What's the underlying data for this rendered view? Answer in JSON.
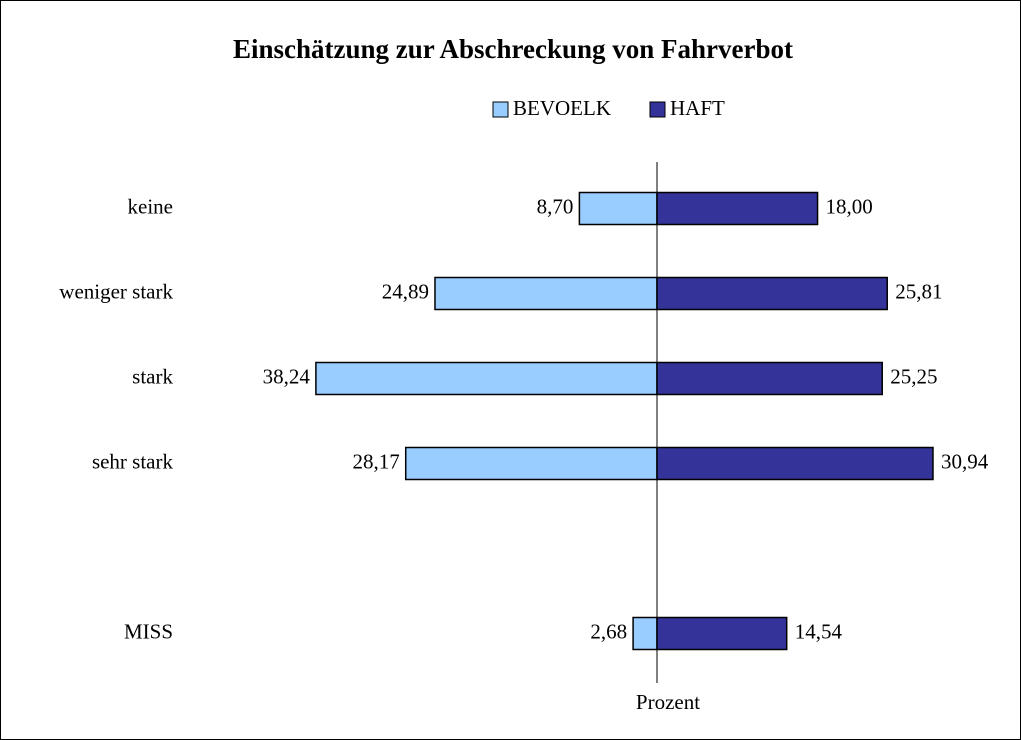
{
  "chart_data": {
    "type": "butterfly-bar",
    "title": "Einschätzung zur Abschreckung von Fahrverbot",
    "xlabel": "Prozent",
    "categories": [
      "keine",
      "weniger stark",
      "stark",
      "sehr stark",
      null,
      "MISS"
    ],
    "series": [
      {
        "name": "BEVOELK",
        "color": "#99ccff",
        "values": [
          8.7,
          24.89,
          38.24,
          28.17,
          null,
          2.68
        ],
        "value_labels": [
          "8,70",
          "24,89",
          "38,24",
          "28,17",
          null,
          "2,68"
        ]
      },
      {
        "name": "HAFT",
        "color": "#333399",
        "values": [
          18.0,
          25.81,
          25.25,
          30.94,
          null,
          14.54
        ],
        "value_labels": [
          "18,00",
          "25,81",
          "25,25",
          "30,94",
          null,
          "14,54"
        ]
      }
    ]
  }
}
